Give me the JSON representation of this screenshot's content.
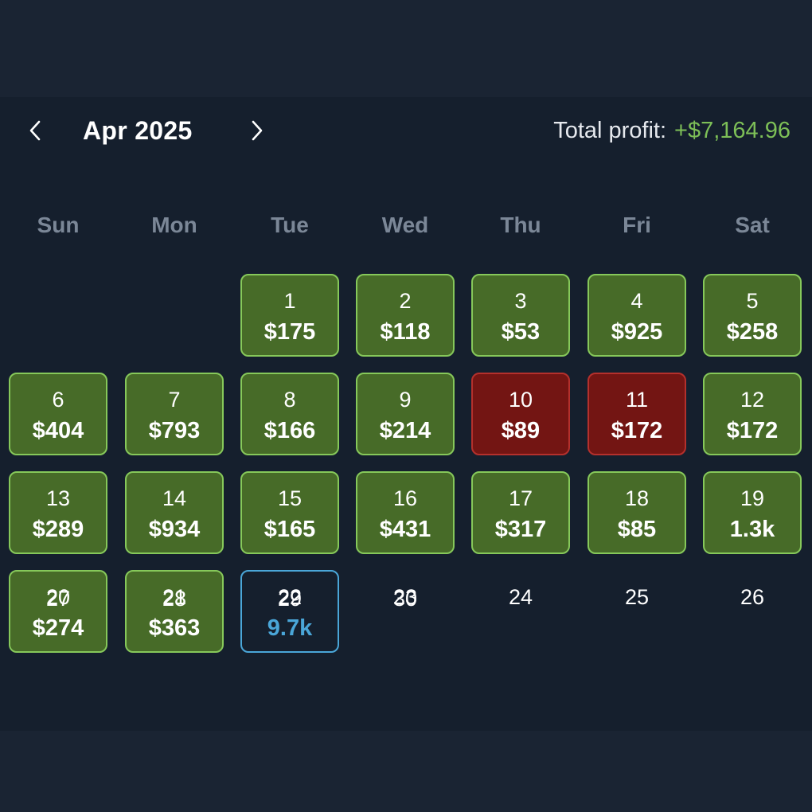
{
  "header": {
    "month_label": "Apr 2025",
    "total_label": "Total profit:",
    "total_value": "+$7,164.96"
  },
  "weekdays": [
    "Sun",
    "Mon",
    "Tue",
    "Wed",
    "Thu",
    "Fri",
    "Sat"
  ],
  "colors": {
    "win_fill": "#476b28",
    "win_border": "#86c85a",
    "loss_fill": "#731513",
    "loss_border": "#b4302c",
    "today_border": "#4aa6d8",
    "profit_text": "#7dbf57"
  },
  "days": [
    {
      "day": "1",
      "pnl": "$175",
      "status": "win"
    },
    {
      "day": "2",
      "pnl": "$118",
      "status": "win"
    },
    {
      "day": "3",
      "pnl": "$53",
      "status": "win"
    },
    {
      "day": "4",
      "pnl": "$925",
      "status": "win"
    },
    {
      "day": "5",
      "pnl": "$258",
      "status": "win"
    },
    {
      "day": "6",
      "pnl": "$404",
      "status": "win"
    },
    {
      "day": "7",
      "pnl": "$793",
      "status": "win"
    },
    {
      "day": "8",
      "pnl": "$166",
      "status": "win"
    },
    {
      "day": "9",
      "pnl": "$214",
      "status": "win"
    },
    {
      "day": "10",
      "pnl": "$89",
      "status": "loss"
    },
    {
      "day": "11",
      "pnl": "$172",
      "status": "loss"
    },
    {
      "day": "12",
      "pnl": "$172",
      "status": "win"
    },
    {
      "day": "13",
      "pnl": "$289",
      "status": "win"
    },
    {
      "day": "14",
      "pnl": "$934",
      "status": "win"
    },
    {
      "day": "15",
      "pnl": "$165",
      "status": "win"
    },
    {
      "day": "16",
      "pnl": "$431",
      "status": "win"
    },
    {
      "day": "17",
      "pnl": "$317",
      "status": "win"
    },
    {
      "day": "18",
      "pnl": "$85",
      "status": "win"
    },
    {
      "day": "19",
      "pnl": "1.3k",
      "status": "win"
    },
    {
      "day": "20",
      "pnl": "$274",
      "status": "win"
    },
    {
      "day": "21",
      "pnl": "$363",
      "status": "win"
    },
    {
      "day": "22",
      "pnl": "9.7k",
      "status": "today"
    },
    {
      "day": "23",
      "pnl": "",
      "status": "plain"
    },
    {
      "day": "24",
      "pnl": "",
      "status": "plain"
    },
    {
      "day": "25",
      "pnl": "",
      "status": "plain"
    },
    {
      "day": "26",
      "pnl": "",
      "status": "plain"
    },
    {
      "day": "27",
      "pnl": "",
      "status": "plain"
    },
    {
      "day": "28",
      "pnl": "",
      "status": "plain"
    },
    {
      "day": "29",
      "pnl": "",
      "status": "plain"
    },
    {
      "day": "30",
      "pnl": "",
      "status": "plain"
    }
  ]
}
